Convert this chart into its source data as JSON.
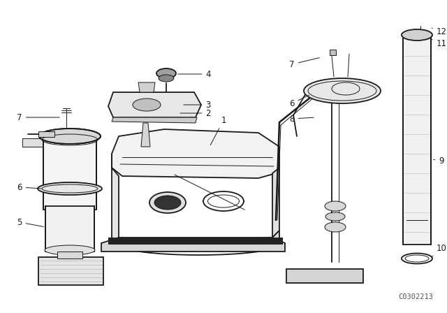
{
  "bg_color": "#ffffff",
  "line_color": "#1a1a1a",
  "catalog_number": "C0302213",
  "figsize": [
    6.4,
    4.48
  ],
  "dpi": 100,
  "lw_main": 1.3,
  "lw_thin": 0.7,
  "lw_hair": 0.4,
  "label_fontsize": 8.5,
  "catalog_fontsize": 7.5
}
